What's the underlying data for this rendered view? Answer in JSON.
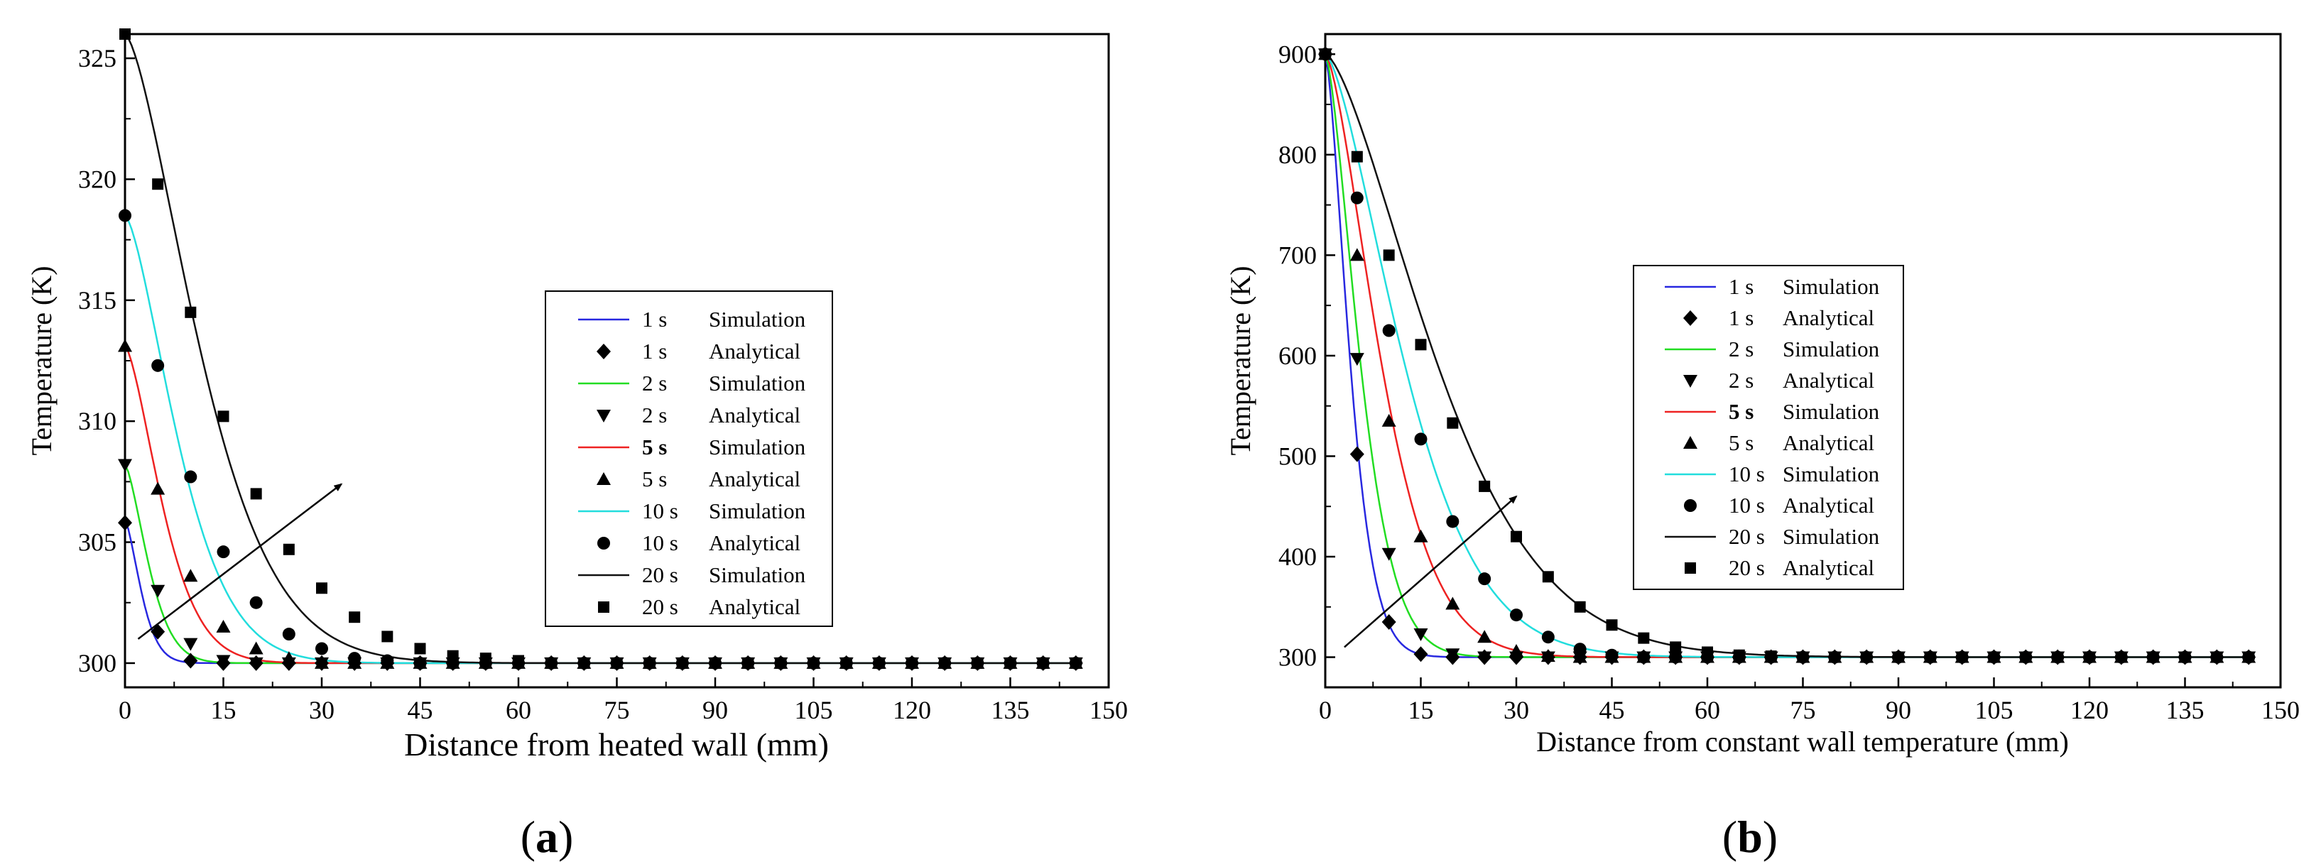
{
  "chart_data": [
    {
      "type": "line",
      "panel_label": {
        "open": "(",
        "letter": "a",
        "close": ")"
      },
      "title": "",
      "xlabel": "Distance from heated wall (mm)",
      "ylabel": "Temperature (K)",
      "xlim": [
        0,
        150
      ],
      "ylim": [
        299,
        326
      ],
      "xticks": [
        0,
        15,
        30,
        45,
        60,
        75,
        90,
        105,
        120,
        135,
        150
      ],
      "yticks": [
        300,
        305,
        310,
        315,
        320,
        325
      ],
      "legend_position": "center-right",
      "series": [
        {
          "time": "1 s",
          "kind": "Simulation",
          "color": "#2828e0",
          "T0": 305.9,
          "L": 3.2
        },
        {
          "time": "1 s",
          "kind": "Analytical",
          "marker": "diamond",
          "color": "#000000",
          "x": [
            0,
            5,
            10,
            15,
            20,
            25,
            30,
            35,
            40,
            45,
            50,
            55,
            60,
            65,
            70,
            75,
            80,
            85,
            90,
            95,
            100,
            105,
            110,
            115,
            120,
            125,
            130,
            135,
            140,
            145
          ],
          "y": [
            305.8,
            301.3,
            300.1,
            300,
            300,
            300,
            300,
            300,
            300,
            300,
            300,
            300,
            300,
            300,
            300,
            300,
            300,
            300,
            300,
            300,
            300,
            300,
            300,
            300,
            300,
            300,
            300,
            300,
            300,
            300
          ]
        },
        {
          "time": "2 s",
          "kind": "Simulation",
          "color": "#22dd22",
          "T0": 308.2,
          "L": 4.6
        },
        {
          "time": "2 s",
          "kind": "Analytical",
          "marker": "triangle-down",
          "color": "#000000",
          "x": [
            0,
            5,
            10,
            15,
            20,
            25,
            30,
            35,
            40,
            45,
            50,
            55,
            60,
            65,
            70,
            75,
            80,
            85,
            90,
            95,
            100,
            105,
            110,
            115,
            120,
            125,
            130,
            135,
            140,
            145
          ],
          "y": [
            308.2,
            303,
            300.8,
            300.1,
            300,
            300,
            300,
            300,
            300,
            300,
            300,
            300,
            300,
            300,
            300,
            300,
            300,
            300,
            300,
            300,
            300,
            300,
            300,
            300,
            300,
            300,
            300,
            300,
            300,
            300
          ]
        },
        {
          "time": "5 s",
          "kind": "Simulation",
          "color": "#ee2222",
          "T0": 313.1,
          "L": 7.3
        },
        {
          "time": "5 s",
          "kind": "Analytical",
          "marker": "triangle-up",
          "color": "#000000",
          "x": [
            0,
            5,
            10,
            15,
            20,
            25,
            30,
            35,
            40,
            45,
            50,
            55,
            60,
            65,
            70,
            75,
            80,
            85,
            90,
            95,
            100,
            105,
            110,
            115,
            120,
            125,
            130,
            135,
            140,
            145
          ],
          "y": [
            313.1,
            307.2,
            303.6,
            301.5,
            300.6,
            300.2,
            300,
            300,
            300,
            300,
            300,
            300,
            300,
            300,
            300,
            300,
            300,
            300,
            300,
            300,
            300,
            300,
            300,
            300,
            300,
            300,
            300,
            300,
            300,
            300
          ]
        },
        {
          "time": "10 s",
          "kind": "Simulation",
          "color": "#22dddd",
          "T0": 318.5,
          "L": 10.3
        },
        {
          "time": "10 s",
          "kind": "Analytical",
          "marker": "circle",
          "color": "#000000",
          "x": [
            0,
            5,
            10,
            15,
            20,
            25,
            30,
            35,
            40,
            45,
            50,
            55,
            60,
            65,
            70,
            75,
            80,
            85,
            90,
            95,
            100,
            105,
            110,
            115,
            120,
            125,
            130,
            135,
            140,
            145
          ],
          "y": [
            318.5,
            312.3,
            307.7,
            304.6,
            302.5,
            301.2,
            300.6,
            300.2,
            300.1,
            300,
            300,
            300,
            300,
            300,
            300,
            300,
            300,
            300,
            300,
            300,
            300,
            300,
            300,
            300,
            300,
            300,
            300,
            300,
            300,
            300
          ]
        },
        {
          "time": "20 s",
          "kind": "Simulation",
          "color": "#111111",
          "T0": 326.0,
          "L": 14.6
        },
        {
          "time": "20 s",
          "kind": "Analytical",
          "marker": "square",
          "color": "#000000",
          "x": [
            0,
            5,
            10,
            15,
            20,
            25,
            30,
            35,
            40,
            45,
            50,
            55,
            60,
            65,
            70,
            75,
            80,
            85,
            90,
            95,
            100,
            105,
            110,
            115,
            120,
            125,
            130,
            135,
            140,
            145
          ],
          "y": [
            326,
            319.8,
            314.5,
            310.2,
            307,
            304.7,
            303.1,
            301.9,
            301.1,
            300.6,
            300.3,
            300.2,
            300.1,
            300,
            300,
            300,
            300,
            300,
            300,
            300,
            300,
            300,
            300,
            300,
            300,
            300,
            300,
            300,
            300,
            300
          ]
        }
      ],
      "annotation": {
        "type": "arrow",
        "meaning": "increasing time",
        "from": [
          2,
          301
        ],
        "to": [
          33,
          307.4
        ]
      }
    },
    {
      "type": "line",
      "panel_label": {
        "open": "(",
        "letter": "b",
        "close": ")"
      },
      "title": "",
      "xlabel": "Distance from constant wall temperature (mm)",
      "ylabel": "Temperature (K)",
      "xlim": [
        0,
        150
      ],
      "ylim": [
        270,
        920
      ],
      "xticks": [
        0,
        15,
        30,
        45,
        60,
        75,
        90,
        105,
        120,
        135,
        150
      ],
      "yticks": [
        300,
        400,
        500,
        600,
        700,
        800,
        900
      ],
      "legend_position": "center",
      "series": [
        {
          "time": "1 s",
          "kind": "Simulation",
          "color": "#2828e0",
          "T0": 900,
          "L": 4.9
        },
        {
          "time": "1 s",
          "kind": "Analytical",
          "marker": "diamond",
          "color": "#000000",
          "x": [
            0,
            5,
            10,
            15,
            20,
            25,
            30,
            35,
            40,
            45,
            50,
            55,
            60,
            65,
            70,
            75,
            80,
            85,
            90,
            95,
            100,
            105,
            110,
            115,
            120,
            125,
            130,
            135,
            140,
            145
          ],
          "y": [
            900,
            502,
            335,
            303,
            300,
            300,
            300,
            300,
            300,
            300,
            300,
            300,
            300,
            300,
            300,
            300,
            300,
            300,
            300,
            300,
            300,
            300,
            300,
            300,
            300,
            300,
            300,
            300,
            300,
            300
          ]
        },
        {
          "time": "2 s",
          "kind": "Simulation",
          "color": "#22dd22",
          "T0": 900,
          "L": 6.9
        },
        {
          "time": "2 s",
          "kind": "Analytical",
          "marker": "triangle-down",
          "color": "#000000",
          "x": [
            0,
            5,
            10,
            15,
            20,
            25,
            30,
            35,
            40,
            45,
            50,
            55,
            60,
            65,
            70,
            75,
            80,
            85,
            90,
            95,
            100,
            105,
            110,
            115,
            120,
            125,
            130,
            135,
            140,
            145
          ],
          "y": [
            900,
            597,
            403,
            323,
            303,
            300,
            300,
            300,
            300,
            300,
            300,
            300,
            300,
            300,
            300,
            300,
            300,
            300,
            300,
            300,
            300,
            300,
            300,
            300,
            300,
            300,
            300,
            300,
            300,
            300
          ]
        },
        {
          "time": "5 s",
          "kind": "Simulation",
          "color": "#ee2222",
          "T0": 900,
          "L": 11.0
        },
        {
          "time": "5 s",
          "kind": "Analytical",
          "marker": "triangle-up",
          "color": "#000000",
          "x": [
            0,
            5,
            10,
            15,
            20,
            25,
            30,
            35,
            40,
            45,
            50,
            55,
            60,
            65,
            70,
            75,
            80,
            85,
            90,
            95,
            100,
            105,
            110,
            115,
            120,
            125,
            130,
            135,
            140,
            145
          ],
          "y": [
            900,
            700,
            535,
            420,
            353,
            320,
            306,
            301,
            300,
            300,
            300,
            300,
            300,
            300,
            300,
            300,
            300,
            300,
            300,
            300,
            300,
            300,
            300,
            300,
            300,
            300,
            300,
            300,
            300,
            300
          ]
        },
        {
          "time": "10 s",
          "kind": "Simulation",
          "color": "#22dddd",
          "T0": 900,
          "L": 15.5
        },
        {
          "time": "10 s",
          "kind": "Analytical",
          "marker": "circle",
          "color": "#000000",
          "x": [
            0,
            5,
            10,
            15,
            20,
            25,
            30,
            35,
            40,
            45,
            50,
            55,
            60,
            65,
            70,
            75,
            80,
            85,
            90,
            95,
            100,
            105,
            110,
            115,
            120,
            125,
            130,
            135,
            140,
            145
          ],
          "y": [
            900,
            757,
            625,
            517,
            435,
            378,
            342,
            320,
            308,
            302,
            300,
            300,
            300,
            300,
            300,
            300,
            300,
            300,
            300,
            300,
            300,
            300,
            300,
            300,
            300,
            300,
            300,
            300,
            300,
            300
          ]
        },
        {
          "time": "20 s",
          "kind": "Simulation",
          "color": "#111111",
          "T0": 900,
          "L": 21.9
        },
        {
          "time": "20 s",
          "kind": "Analytical",
          "marker": "square",
          "color": "#000000",
          "x": [
            0,
            5,
            10,
            15,
            20,
            25,
            30,
            35,
            40,
            45,
            50,
            55,
            60,
            65,
            70,
            75,
            80,
            85,
            90,
            95,
            100,
            105,
            110,
            115,
            120,
            125,
            130,
            135,
            140,
            145
          ],
          "y": [
            900,
            798,
            700,
            611,
            533,
            470,
            420,
            380,
            350,
            332,
            319,
            310,
            305,
            302,
            301,
            300,
            300,
            300,
            300,
            300,
            300,
            300,
            300,
            300,
            300,
            300,
            300,
            300,
            300,
            300
          ]
        }
      ],
      "annotation": {
        "type": "arrow",
        "meaning": "increasing time",
        "from": [
          3,
          310
        ],
        "to": [
          30,
          460
        ]
      }
    }
  ]
}
